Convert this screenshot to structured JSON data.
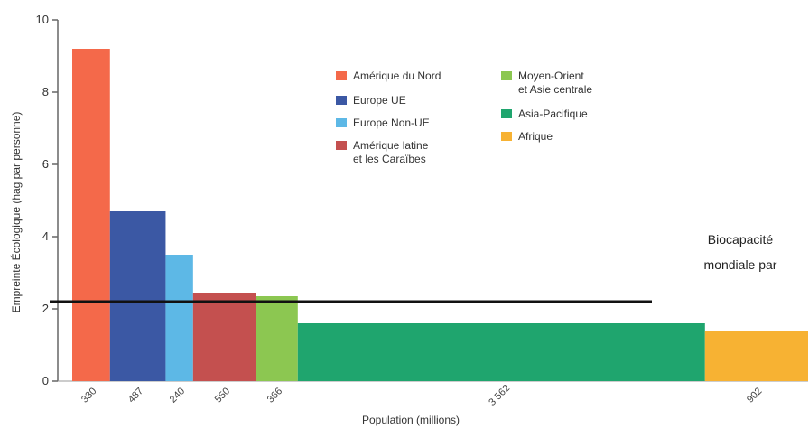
{
  "chart_data": {
    "type": "bar",
    "title": "",
    "xlabel": "Population (millions)",
    "ylabel": "Empreinte Écologique (hag par personne)",
    "ylim": [
      0,
      10
    ],
    "yticks": [
      "0",
      "2",
      "4",
      "6",
      "8",
      "10"
    ],
    "grid": false,
    "legend_position": "top-center",
    "series": [
      {
        "name": "Amérique du Nord",
        "population_label": "330",
        "population": 330,
        "value": 9.2,
        "color": "#f4694a"
      },
      {
        "name": "Europe UE",
        "population_label": "487",
        "population": 487,
        "value": 4.7,
        "color": "#3b58a4"
      },
      {
        "name": "Europe Non-UE",
        "population_label": "240",
        "population": 240,
        "value": 3.5,
        "color": "#5db8e6"
      },
      {
        "name": "Amérique latine et les Caraïbes",
        "population_label": "550",
        "population": 550,
        "value": 2.45,
        "color": "#c4504f"
      },
      {
        "name": "Moyen-Orient et Asie centrale",
        "population_label": "366",
        "population": 366,
        "value": 2.35,
        "color": "#8cc751"
      },
      {
        "name": "Asie-Pacifique",
        "population_label": "3 562",
        "population": 3562,
        "value": 1.6,
        "color": "#1fa56e"
      },
      {
        "name": "Afrique",
        "population_label": "902",
        "population": 902,
        "value": 1.4,
        "color": "#f7b233"
      }
    ],
    "legend": [
      [
        "Amérique du Nord"
      ],
      [
        "Europe UE"
      ],
      [
        "Europe Non-UE"
      ],
      [
        "Amérique latine",
        "et les Caraïbes"
      ],
      [
        "Moyen-Orient",
        "et Asie centrale"
      ],
      [
        "Asia-Pacifique"
      ],
      [
        "Afrique"
      ]
    ],
    "reference_line": {
      "value": 2.2,
      "label": [
        "Biocapacité",
        "mondiale par"
      ]
    }
  }
}
